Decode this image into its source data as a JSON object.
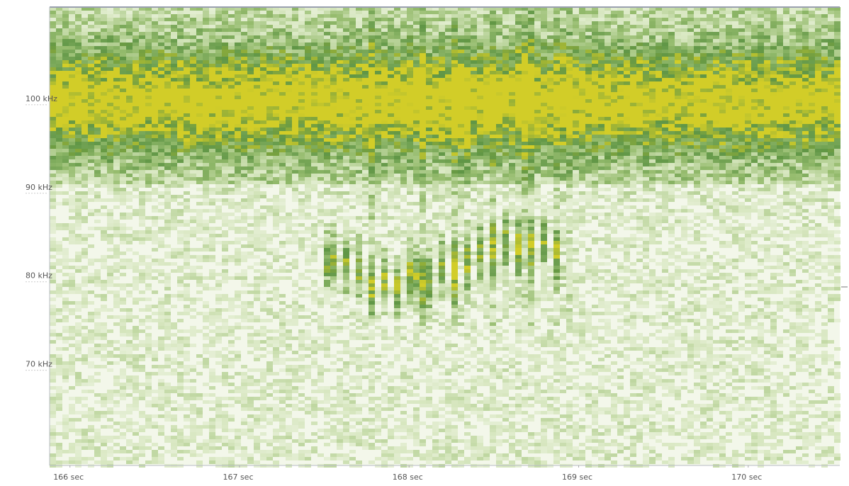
{
  "chart_data": {
    "type": "spectrogram",
    "xlim": [
      165.88,
      170.54
    ],
    "xticks": [
      {
        "value": 166,
        "label": "166 sec"
      },
      {
        "value": 167,
        "label": "167 sec"
      },
      {
        "value": 168,
        "label": "168 sec"
      },
      {
        "value": 169,
        "label": "169 sec"
      },
      {
        "value": 170,
        "label": "170 sec"
      }
    ],
    "ylim": [
      58.6,
      110.4
    ],
    "yticks": [
      {
        "value": 100,
        "label": "100 kHz"
      },
      {
        "value": 90,
        "label": "90 kHz"
      },
      {
        "value": 80,
        "label": "80 kHz"
      },
      {
        "value": 70,
        "label": "70 kHz"
      }
    ]
  }
}
